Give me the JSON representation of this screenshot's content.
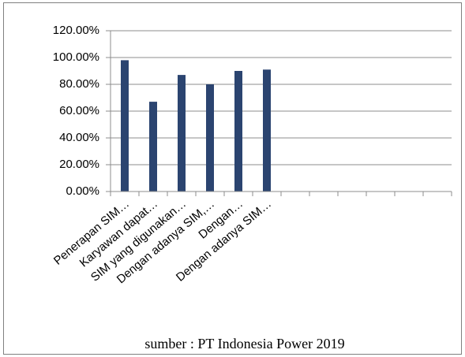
{
  "chart_data": {
    "type": "bar",
    "categories": [
      "Penerapan SIM…",
      "Karyawan dapat…",
      "SIM yang digunakan…",
      "Dengan adanya SIM,…",
      "Dengan…",
      "Dengan adanya SIM…",
      null,
      null,
      null,
      null,
      null,
      null
    ],
    "values": [
      98,
      67,
      87,
      80,
      90,
      91,
      null,
      null,
      null,
      null,
      null,
      null
    ],
    "color": "#2b4470",
    "ylim": [
      0,
      120
    ],
    "yticks": [
      {
        "value": 0,
        "label": "0.00%"
      },
      {
        "value": 20,
        "label": "20.00%"
      },
      {
        "value": 40,
        "label": "40.00%"
      },
      {
        "value": 60,
        "label": "60.00%"
      },
      {
        "value": 80,
        "label": "80.00%"
      },
      {
        "value": 100,
        "label": "100.00%"
      },
      {
        "value": 120,
        "label": "120.00%"
      }
    ],
    "grid": true,
    "source": "sumber : PT Indonesia Power 2019"
  }
}
